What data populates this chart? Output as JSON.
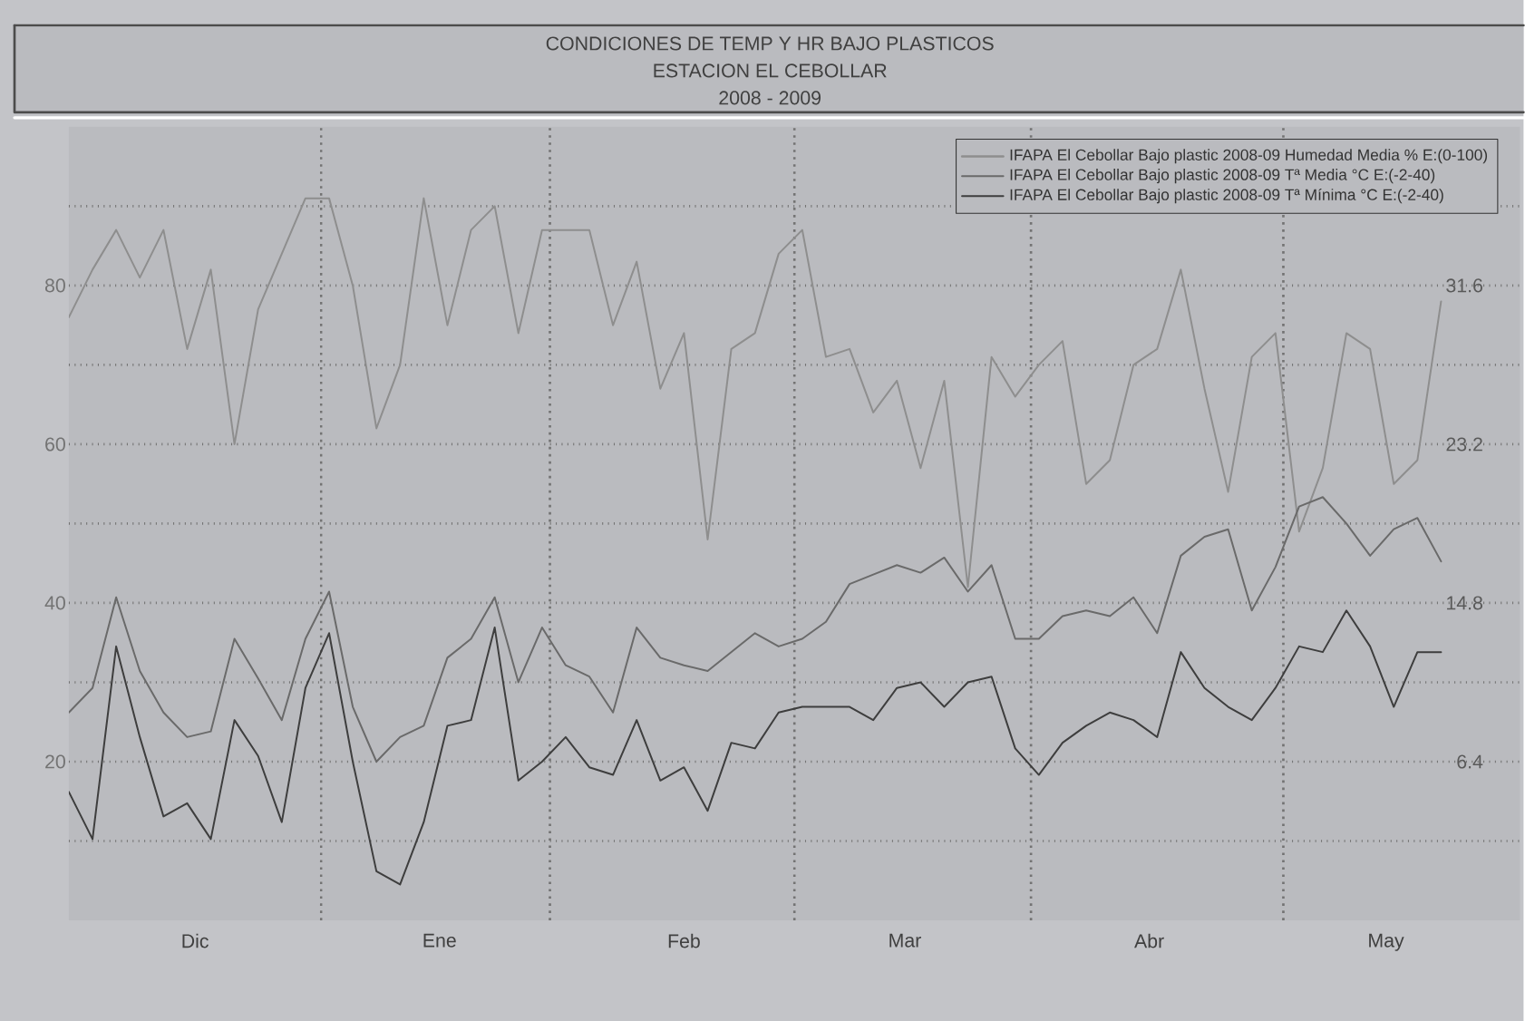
{
  "chart_data": {
    "type": "line",
    "title": "CONDICIONES DE TEMP Y HR BAJO PLASTICOS",
    "subtitle": "ESTACION EL CEBOLLAR",
    "annotations": [
      "2008 - 2009"
    ],
    "x": [
      "2008-11-30",
      "2008-12-03",
      "2008-12-06",
      "2008-12-09",
      "2008-12-12",
      "2008-12-15",
      "2008-12-18",
      "2008-12-21",
      "2008-12-24",
      "2008-12-27",
      "2008-12-30",
      "2009-01-02",
      "2009-01-05",
      "2009-01-08",
      "2009-01-11",
      "2009-01-14",
      "2009-01-17",
      "2009-01-20",
      "2009-01-23",
      "2009-01-26",
      "2009-01-29",
      "2009-02-01",
      "2009-02-04",
      "2009-02-07",
      "2009-02-10",
      "2009-02-13",
      "2009-02-16",
      "2009-02-19",
      "2009-02-22",
      "2009-02-25",
      "2009-02-28",
      "2009-03-03",
      "2009-03-06",
      "2009-03-09",
      "2009-03-12",
      "2009-03-15",
      "2009-03-18",
      "2009-03-21",
      "2009-03-24",
      "2009-03-27",
      "2009-03-30",
      "2009-04-02",
      "2009-04-05",
      "2009-04-08",
      "2009-04-11",
      "2009-04-14",
      "2009-04-17",
      "2009-04-20",
      "2009-04-23",
      "2009-04-26",
      "2009-04-29",
      "2009-05-02",
      "2009-05-05",
      "2009-05-08",
      "2009-05-11",
      "2009-05-14",
      "2009-05-17",
      "2009-05-20",
      "2009-05-23"
    ],
    "series": [
      {
        "name": "IFAPA El Cebollar Bajo plastic 2008-09 Humedad Media % E:(0-100)",
        "color": "#8e8e8e",
        "values": [
          76,
          82,
          87,
          81,
          87,
          72,
          82,
          60,
          77,
          84,
          91,
          91,
          80,
          62,
          70,
          91,
          75,
          87,
          90,
          74,
          87,
          87,
          87,
          75,
          83,
          67,
          74,
          48,
          72,
          74,
          84,
          87,
          71,
          72,
          64,
          68,
          57,
          68,
          42,
          71,
          66,
          70,
          73,
          55,
          58,
          70,
          72,
          82,
          67,
          54,
          71,
          74,
          49,
          57,
          74,
          72,
          55,
          58,
          78
        ]
      },
      {
        "name": "IFAPA El Cebollar Bajo plastic 2008-09 Tª Media °C E:(-2-40)",
        "color": "#6a6a6a",
        "axis": "y2",
        "values": [
          9.0,
          10.3,
          15.1,
          11.2,
          9.0,
          7.7,
          8.0,
          12.9,
          10.8,
          8.6,
          12.9,
          15.4,
          9.3,
          6.4,
          7.7,
          8.3,
          11.9,
          12.9,
          15.1,
          10.6,
          13.5,
          11.5,
          10.9,
          9.0,
          13.5,
          11.9,
          11.5,
          11.2,
          12.2,
          13.2,
          12.5,
          12.9,
          13.8,
          15.8,
          16.3,
          16.8,
          16.4,
          17.2,
          15.4,
          16.8,
          12.9,
          12.9,
          14.1,
          14.4,
          14.1,
          15.1,
          13.2,
          17.3,
          18.3,
          18.7,
          14.4,
          16.7,
          19.9,
          20.4,
          19.0,
          17.3,
          18.7,
          19.3,
          17.0
        ]
      },
      {
        "name": "IFAPA El Cebollar Bajo plastic 2008-09 Tª Mínima °C E:(-2-40)",
        "color": "#3e3e3e",
        "axis": "y2",
        "values": [
          4.8,
          2.3,
          12.5,
          7.7,
          3.5,
          4.2,
          2.3,
          8.6,
          6.7,
          3.2,
          10.3,
          13.2,
          6.4,
          0.6,
          -0.1,
          3.2,
          8.3,
          8.6,
          13.5,
          5.4,
          6.4,
          7.7,
          6.1,
          5.7,
          8.6,
          5.4,
          6.1,
          3.8,
          7.4,
          7.1,
          9.0,
          9.3,
          9.3,
          9.3,
          8.6,
          10.3,
          10.6,
          9.3,
          10.6,
          10.9,
          7.1,
          5.7,
          7.4,
          8.3,
          9.0,
          8.6,
          7.7,
          12.2,
          10.3,
          9.3,
          8.6,
          10.3,
          12.5,
          12.2,
          14.4,
          12.5,
          9.3,
          12.2,
          12.2
        ]
      }
    ],
    "xlim": [
      "2008-11-30",
      "2009-06-02"
    ],
    "xticks": [
      {
        "value": "2008-12-16",
        "label": "Dic"
      },
      {
        "value": "2009-01-16",
        "label": "Ene"
      },
      {
        "value": "2009-02-16",
        "label": "Feb"
      },
      {
        "value": "2009-03-16",
        "label": "Mar"
      },
      {
        "value": "2009-04-16",
        "label": "Abr"
      },
      {
        "value": "2009-05-16",
        "label": "May"
      }
    ],
    "ylim": [
      0,
      100
    ],
    "yticks": [
      {
        "value": 10,
        "label": null
      },
      20,
      {
        "value": 30,
        "label": null
      },
      40,
      {
        "value": 50,
        "label": null
      },
      60,
      {
        "value": 70,
        "label": null
      },
      80,
      {
        "value": 90,
        "label": null
      }
    ],
    "y2lim": [
      -2,
      40
    ],
    "y2ticks": [
      6.4,
      14.8,
      23.2,
      31.6
    ],
    "ref_lines": [
      {
        "axis": "x",
        "value": "2009-01-01",
        "line_style": "dotted"
      },
      {
        "axis": "x",
        "value": "2009-01-30",
        "line_style": "dotted"
      },
      {
        "axis": "x",
        "value": "2009-03-02",
        "line_style": "dotted"
      },
      {
        "axis": "x",
        "value": "2009-04-01",
        "line_style": "dotted"
      },
      {
        "axis": "x",
        "value": "2009-05-03",
        "line_style": "dotted"
      }
    ],
    "grid": "y",
    "legend": "top right"
  }
}
